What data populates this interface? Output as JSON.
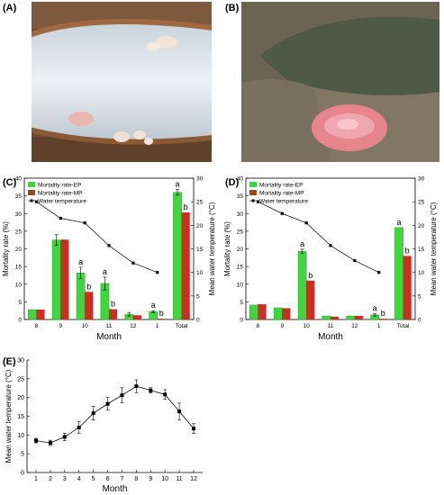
{
  "panels": {
    "A": "(A)",
    "B": "(B)",
    "C": "(C)",
    "D": "(D)",
    "E": "(E)"
  },
  "colors": {
    "ep": "#40d640",
    "ep_bar_border": "#2a9a2a",
    "mp": "#9b4a1c",
    "red_bar": "#e52020",
    "line": "#000000",
    "photo_a_bg": "#6b4a33",
    "photo_a_fish": "#dde6ee",
    "photo_b_bg": "#5b5344",
    "photo_b_organ": "#e7858f"
  },
  "chart_data": [
    {
      "id": "C",
      "type": "bar",
      "categories": [
        "8",
        "9",
        "10",
        "11",
        "12",
        "1",
        "Total"
      ],
      "series": [
        {
          "name": "Mortality rate-EP",
          "values": [
            2.8,
            22.5,
            13.2,
            10.2,
            1.5,
            2.2,
            36.0
          ],
          "err": [
            0,
            1.5,
            1.6,
            1.8,
            0.5,
            0.3,
            0.8
          ]
        },
        {
          "name": "Mortality rate-MP",
          "values": [
            2.8,
            22.6,
            7.8,
            2.9,
            1.2,
            0.2,
            30.3
          ],
          "err": [
            0,
            0,
            0,
            0,
            0,
            0,
            0
          ]
        }
      ],
      "line": {
        "name": "Water temperature",
        "values": [
          25.0,
          21.5,
          20.5,
          15.7,
          12.0,
          10.0
        ]
      },
      "letters": [
        {
          "cat": "10",
          "ep": "a",
          "mp": "b"
        },
        {
          "cat": "11",
          "ep": "a",
          "mp": "b"
        },
        {
          "cat": "1",
          "ep": "a",
          "mp": "b"
        },
        {
          "cat": "Total",
          "ep": "a",
          "mp": "b"
        }
      ],
      "xlabel": "Month",
      "ylabel": "Mortality rate (%)",
      "y2label": "Mean water temperature (°C)",
      "ylim": [
        0,
        40
      ],
      "yticks": [
        0,
        5,
        10,
        15,
        20,
        25,
        30,
        35,
        40
      ],
      "y2lim": [
        0,
        30
      ],
      "y2ticks": [
        0,
        5,
        10,
        15,
        20,
        25,
        30
      ],
      "legend": "top-left"
    },
    {
      "id": "D",
      "type": "bar",
      "categories": [
        "8",
        "9",
        "10",
        "11",
        "12",
        "1",
        "Total"
      ],
      "series": [
        {
          "name": "Mortality rate-EP",
          "values": [
            4.1,
            3.3,
            19.3,
            1.0,
            1.0,
            1.3,
            26.0
          ],
          "err": [
            0,
            0,
            0.6,
            0,
            0,
            0.3,
            0
          ]
        },
        {
          "name": "Mortality rate-MP",
          "values": [
            4.3,
            3.2,
            11.0,
            0.8,
            1.0,
            0.2,
            18.0
          ],
          "err": [
            0,
            0,
            0,
            0,
            0,
            0,
            0
          ]
        }
      ],
      "line": {
        "name": "Water temperature",
        "values": [
          25.0,
          22.5,
          20.5,
          15.7,
          12.5,
          10.0
        ]
      },
      "letters": [
        {
          "cat": "10",
          "ep": "a",
          "mp": "b"
        },
        {
          "cat": "1",
          "ep": "a",
          "mp": "b"
        },
        {
          "cat": "Total",
          "ep": "a",
          "mp": "b"
        }
      ],
      "xlabel": "Month",
      "ylabel": "Mortality rate (%)",
      "y2label": "Mean water temperature (°C)",
      "ylim": [
        0,
        40
      ],
      "yticks": [
        0,
        5,
        10,
        15,
        20,
        25,
        30,
        35,
        40
      ],
      "y2lim": [
        0,
        30
      ],
      "y2ticks": [
        0,
        5,
        10,
        15,
        20,
        25,
        30
      ],
      "legend": "top-left"
    },
    {
      "id": "E",
      "type": "line",
      "x": [
        1,
        2,
        3,
        4,
        5,
        6,
        7,
        8,
        9,
        10,
        11,
        12
      ],
      "values": [
        8.5,
        7.9,
        9.5,
        12.0,
        15.8,
        18.3,
        20.6,
        23.0,
        21.9,
        20.8,
        16.3,
        11.7
      ],
      "err": [
        0.6,
        0.7,
        1.0,
        1.5,
        1.8,
        1.7,
        2.0,
        1.7,
        0.7,
        1.3,
        2.2,
        1.3
      ],
      "xticks": [
        "1",
        "2",
        "3",
        "4",
        "5",
        "6",
        "7",
        "8",
        "9",
        "10",
        "11",
        "12"
      ],
      "xlabel": "Month",
      "ylabel": "Mean water temperature (°C)",
      "ylim": [
        0,
        30
      ],
      "yticks": [
        0,
        5,
        10,
        15,
        20,
        25,
        30
      ]
    }
  ]
}
